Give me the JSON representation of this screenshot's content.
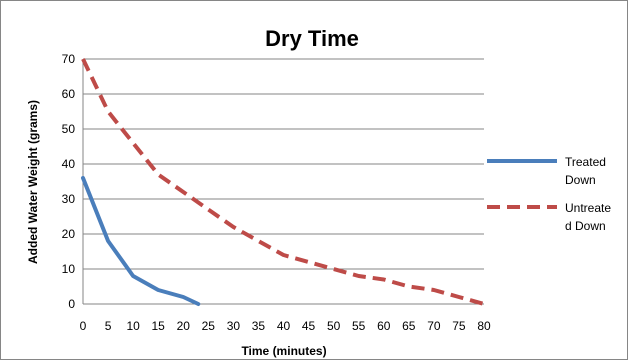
{
  "chart_data": {
    "type": "line",
    "title": "Dry Time",
    "xlabel": "Time (minutes)",
    "ylabel": "Added Water  Weight (grams)",
    "xlim": [
      0,
      80
    ],
    "ylim": [
      0,
      70
    ],
    "x_ticks": [
      "0",
      "5",
      "10",
      "15",
      "20",
      "25",
      "30",
      "35",
      "40",
      "45",
      "50",
      "55",
      "60",
      "65",
      "70",
      "75",
      "80"
    ],
    "y_ticks": [
      "0",
      "10",
      "20",
      "30",
      "40",
      "50",
      "60",
      "70"
    ],
    "grid": "horizontal",
    "legend_position": "right",
    "series": [
      {
        "name": "Treated Down",
        "name_lines": [
          "Treated",
          "Down"
        ],
        "color": "#4a7ebb",
        "style": "solid",
        "x": [
          0,
          5,
          10,
          15,
          20,
          23
        ],
        "y": [
          36,
          18,
          8,
          4,
          2,
          0
        ]
      },
      {
        "name": "Untreated Down",
        "name_lines": [
          "Untreate",
          "d Down"
        ],
        "color": "#be4b48",
        "style": "dashed",
        "x": [
          0,
          5,
          10,
          15,
          20,
          25,
          30,
          35,
          40,
          45,
          50,
          55,
          60,
          65,
          70,
          75,
          80
        ],
        "y": [
          70,
          55,
          46,
          37,
          32,
          27,
          22,
          18,
          14,
          12,
          10,
          8,
          7,
          5,
          4,
          2,
          0
        ]
      }
    ]
  }
}
